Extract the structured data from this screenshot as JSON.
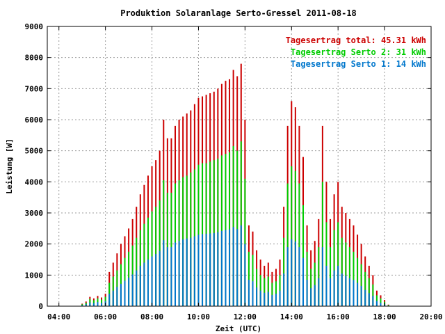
{
  "chart_data": {
    "type": "bar",
    "title": "Produktion Solaranlage Serto-Gressel 2011-08-18",
    "xlabel": "Zeit (UTC)",
    "ylabel": "Leistung [W]",
    "xlim": [
      "03:30",
      "20:00"
    ],
    "ylim": [
      0,
      9000
    ],
    "x_ticks": [
      "04:00",
      "06:00",
      "08:00",
      "10:00",
      "12:00",
      "14:00",
      "16:00",
      "18:00",
      "20:00"
    ],
    "y_ticks": [
      "0",
      "1000",
      "2000",
      "3000",
      "4000",
      "5000",
      "6000",
      "7000",
      "8000",
      "9000"
    ],
    "grid": true,
    "legend_position": "top-right",
    "stacked": true,
    "series": [
      {
        "name": "Tagesertrag total: 45.31 kWh",
        "color": "#cc0000",
        "points": [
          [
            "05:00",
            80
          ],
          [
            "05:10",
            150
          ],
          [
            "05:20",
            300
          ],
          [
            "05:30",
            250
          ],
          [
            "05:40",
            330
          ],
          [
            "05:50",
            280
          ],
          [
            "06:00",
            400
          ],
          [
            "06:10",
            1100
          ],
          [
            "06:20",
            1400
          ],
          [
            "06:30",
            1700
          ],
          [
            "06:40",
            2000
          ],
          [
            "06:50",
            2250
          ],
          [
            "07:00",
            2500
          ],
          [
            "07:10",
            2800
          ],
          [
            "07:20",
            3200
          ],
          [
            "07:30",
            3600
          ],
          [
            "07:40",
            3900
          ],
          [
            "07:50",
            4200
          ],
          [
            "08:00",
            4500
          ],
          [
            "08:10",
            4700
          ],
          [
            "08:20",
            5000
          ],
          [
            "08:30",
            6000
          ],
          [
            "08:40",
            5400
          ],
          [
            "08:50",
            5400
          ],
          [
            "09:00",
            5800
          ],
          [
            "09:10",
            6000
          ],
          [
            "09:20",
            6100
          ],
          [
            "09:30",
            6200
          ],
          [
            "09:40",
            6300
          ],
          [
            "09:50",
            6500
          ],
          [
            "10:00",
            6700
          ],
          [
            "10:10",
            6750
          ],
          [
            "10:20",
            6800
          ],
          [
            "10:30",
            6850
          ],
          [
            "10:40",
            6900
          ],
          [
            "10:50",
            7000
          ],
          [
            "11:00",
            7150
          ],
          [
            "11:10",
            7250
          ],
          [
            "11:20",
            7300
          ],
          [
            "11:30",
            7600
          ],
          [
            "11:40",
            7400
          ],
          [
            "11:50",
            7800
          ],
          [
            "12:00",
            6000
          ],
          [
            "12:10",
            2600
          ],
          [
            "12:20",
            2400
          ],
          [
            "12:30",
            1800
          ],
          [
            "12:40",
            1500
          ],
          [
            "12:50",
            1300
          ],
          [
            "13:00",
            1400
          ],
          [
            "13:10",
            1100
          ],
          [
            "13:20",
            1200
          ],
          [
            "13:30",
            1500
          ],
          [
            "13:40",
            3200
          ],
          [
            "13:50",
            5800
          ],
          [
            "14:00",
            6600
          ],
          [
            "14:10",
            6400
          ],
          [
            "14:20",
            5800
          ],
          [
            "14:30",
            4800
          ],
          [
            "14:40",
            2600
          ],
          [
            "14:50",
            1800
          ],
          [
            "15:00",
            2100
          ],
          [
            "15:10",
            2800
          ],
          [
            "15:20",
            5800
          ],
          [
            "15:30",
            4000
          ],
          [
            "15:40",
            2800
          ],
          [
            "15:50",
            3600
          ],
          [
            "16:00",
            4000
          ],
          [
            "16:10",
            3200
          ],
          [
            "16:20",
            3000
          ],
          [
            "16:30",
            2800
          ],
          [
            "16:40",
            2600
          ],
          [
            "16:50",
            2300
          ],
          [
            "17:00",
            2000
          ],
          [
            "17:10",
            1600
          ],
          [
            "17:20",
            1300
          ],
          [
            "17:30",
            1000
          ],
          [
            "17:40",
            500
          ],
          [
            "17:50",
            350
          ],
          [
            "18:00",
            200
          ],
          [
            "18:10",
            50
          ]
        ]
      },
      {
        "name": "Tagesertrag Serto 2: 31 kWh",
        "color": "#00cc00",
        "points": [
          [
            "05:00",
            60
          ],
          [
            "05:10",
            110
          ],
          [
            "05:20",
            230
          ],
          [
            "05:30",
            190
          ],
          [
            "05:40",
            250
          ],
          [
            "05:50",
            210
          ],
          [
            "06:00",
            300
          ],
          [
            "06:10",
            750
          ],
          [
            "06:20",
            950
          ],
          [
            "06:30",
            1150
          ],
          [
            "06:40",
            1350
          ],
          [
            "06:50",
            1550
          ],
          [
            "07:00",
            1750
          ],
          [
            "07:10",
            1950
          ],
          [
            "07:20",
            2200
          ],
          [
            "07:30",
            2450
          ],
          [
            "07:40",
            2650
          ],
          [
            "07:50",
            2850
          ],
          [
            "08:00",
            3050
          ],
          [
            "08:10",
            3200
          ],
          [
            "08:20",
            3400
          ],
          [
            "08:30",
            4050
          ],
          [
            "08:40",
            3650
          ],
          [
            "08:50",
            3650
          ],
          [
            "09:00",
            3950
          ],
          [
            "09:10",
            4050
          ],
          [
            "09:20",
            4150
          ],
          [
            "09:30",
            4200
          ],
          [
            "09:40",
            4300
          ],
          [
            "09:50",
            4400
          ],
          [
            "10:00",
            4550
          ],
          [
            "10:10",
            4600
          ],
          [
            "10:20",
            4600
          ],
          [
            "10:30",
            4650
          ],
          [
            "10:40",
            4700
          ],
          [
            "10:50",
            4750
          ],
          [
            "11:00",
            4850
          ],
          [
            "11:10",
            4900
          ],
          [
            "11:20",
            4950
          ],
          [
            "11:30",
            5150
          ],
          [
            "11:40",
            5000
          ],
          [
            "11:50",
            5300
          ],
          [
            "12:00",
            4100
          ],
          [
            "12:10",
            1750
          ],
          [
            "12:20",
            1650
          ],
          [
            "12:30",
            1200
          ],
          [
            "12:40",
            1000
          ],
          [
            "12:50",
            900
          ],
          [
            "13:00",
            950
          ],
          [
            "13:10",
            750
          ],
          [
            "13:20",
            800
          ],
          [
            "13:30",
            1000
          ],
          [
            "13:40",
            2200
          ],
          [
            "13:50",
            3950
          ],
          [
            "14:00",
            4500
          ],
          [
            "14:10",
            4350
          ],
          [
            "14:20",
            3950
          ],
          [
            "14:30",
            3250
          ],
          [
            "14:40",
            1750
          ],
          [
            "14:50",
            1200
          ],
          [
            "15:00",
            1400
          ],
          [
            "15:10",
            1900
          ],
          [
            "15:20",
            4000
          ],
          [
            "15:30",
            2700
          ],
          [
            "15:40",
            1900
          ],
          [
            "15:50",
            2450
          ],
          [
            "16:00",
            2700
          ],
          [
            "16:10",
            2200
          ],
          [
            "16:20",
            2050
          ],
          [
            "16:30",
            1900
          ],
          [
            "16:40",
            1750
          ],
          [
            "16:50",
            1550
          ],
          [
            "17:00",
            1350
          ],
          [
            "17:10",
            1100
          ],
          [
            "17:20",
            900
          ],
          [
            "17:30",
            700
          ],
          [
            "17:40",
            350
          ],
          [
            "17:50",
            250
          ],
          [
            "18:00",
            140
          ],
          [
            "18:10",
            35
          ]
        ]
      },
      {
        "name": "Tagesertrag Serto 1: 14 kWh",
        "color": "#0077cc",
        "points": [
          [
            "05:00",
            30
          ],
          [
            "05:10",
            60
          ],
          [
            "05:20",
            120
          ],
          [
            "05:30",
            100
          ],
          [
            "05:40",
            130
          ],
          [
            "05:50",
            110
          ],
          [
            "06:00",
            160
          ],
          [
            "06:10",
            400
          ],
          [
            "06:20",
            500
          ],
          [
            "06:30",
            620
          ],
          [
            "06:40",
            720
          ],
          [
            "06:50",
            820
          ],
          [
            "07:00",
            920
          ],
          [
            "07:10",
            1020
          ],
          [
            "07:20",
            1150
          ],
          [
            "07:30",
            1300
          ],
          [
            "07:40",
            1400
          ],
          [
            "07:50",
            1500
          ],
          [
            "08:00",
            1600
          ],
          [
            "08:10",
            1680
          ],
          [
            "08:20",
            1780
          ],
          [
            "08:30",
            2120
          ],
          [
            "08:40",
            1900
          ],
          [
            "08:50",
            1900
          ],
          [
            "09:00",
            2050
          ],
          [
            "09:10",
            2100
          ],
          [
            "09:20",
            2150
          ],
          [
            "09:30",
            2180
          ],
          [
            "09:40",
            2200
          ],
          [
            "09:50",
            2250
          ],
          [
            "10:00",
            2300
          ],
          [
            "10:10",
            2320
          ],
          [
            "10:20",
            2330
          ],
          [
            "10:30",
            2340
          ],
          [
            "10:40",
            2350
          ],
          [
            "10:50",
            2380
          ],
          [
            "11:00",
            2420
          ],
          [
            "11:10",
            2450
          ],
          [
            "11:20",
            2470
          ],
          [
            "11:30",
            2550
          ],
          [
            "11:40",
            2480
          ],
          [
            "11:50",
            2600
          ],
          [
            "12:00",
            2000
          ],
          [
            "12:10",
            850
          ],
          [
            "12:20",
            800
          ],
          [
            "12:30",
            600
          ],
          [
            "12:40",
            500
          ],
          [
            "12:50",
            430
          ],
          [
            "13:00",
            460
          ],
          [
            "13:10",
            360
          ],
          [
            "13:20",
            400
          ],
          [
            "13:30",
            500
          ],
          [
            "13:40",
            1050
          ],
          [
            "13:50",
            1900
          ],
          [
            "14:00",
            2150
          ],
          [
            "14:10",
            2080
          ],
          [
            "14:20",
            1900
          ],
          [
            "14:30",
            1550
          ],
          [
            "14:40",
            850
          ],
          [
            "14:50",
            580
          ],
          [
            "15:00",
            680
          ],
          [
            "15:10",
            900
          ],
          [
            "15:20",
            1900
          ],
          [
            "15:30",
            1300
          ],
          [
            "15:40",
            900
          ],
          [
            "15:50",
            1150
          ],
          [
            "16:00",
            1300
          ],
          [
            "16:10",
            1050
          ],
          [
            "16:20",
            980
          ],
          [
            "16:30",
            900
          ],
          [
            "16:40",
            840
          ],
          [
            "16:50",
            750
          ],
          [
            "17:00",
            650
          ],
          [
            "17:10",
            520
          ],
          [
            "17:20",
            420
          ],
          [
            "17:30",
            330
          ],
          [
            "17:40",
            170
          ],
          [
            "17:50",
            110
          ],
          [
            "18:00",
            60
          ],
          [
            "18:10",
            15
          ]
        ]
      }
    ]
  }
}
